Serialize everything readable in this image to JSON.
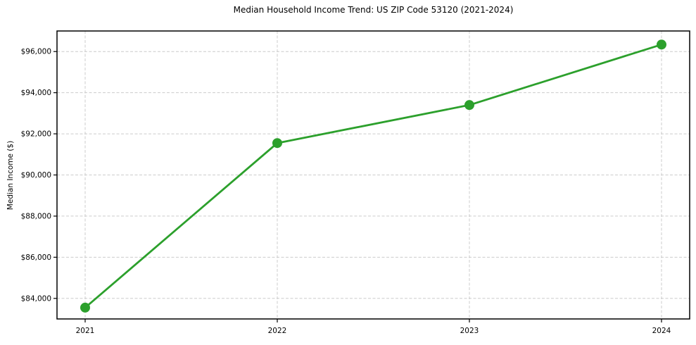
{
  "figure": {
    "background": "#ffffff"
  },
  "chart_data": {
    "type": "line",
    "title": "Median Household Income Trend: US ZIP Code 53120 (2021-2024)",
    "xlabel": "",
    "ylabel": "Median Income ($)",
    "categories": [
      "2021",
      "2022",
      "2023",
      "2024"
    ],
    "series": [
      {
        "name": "Median Household Income",
        "values": [
          83550,
          91550,
          93400,
          96340
        ]
      }
    ],
    "ylim": [
      83000,
      97000
    ],
    "yticks": [
      84000,
      86000,
      88000,
      90000,
      92000,
      94000,
      96000
    ],
    "ytick_labels": [
      "$84,000",
      "$86,000",
      "$88,000",
      "$90,000",
      "$92,000",
      "$94,000",
      "$96,000"
    ],
    "grid": true,
    "grid_style": "dashed",
    "legend": "none",
    "line_color": "#2ca02c",
    "marker_color": "#2ca02c",
    "grid_color": "#cccccc",
    "axis_color": "#000000",
    "text_color": "#000000"
  }
}
